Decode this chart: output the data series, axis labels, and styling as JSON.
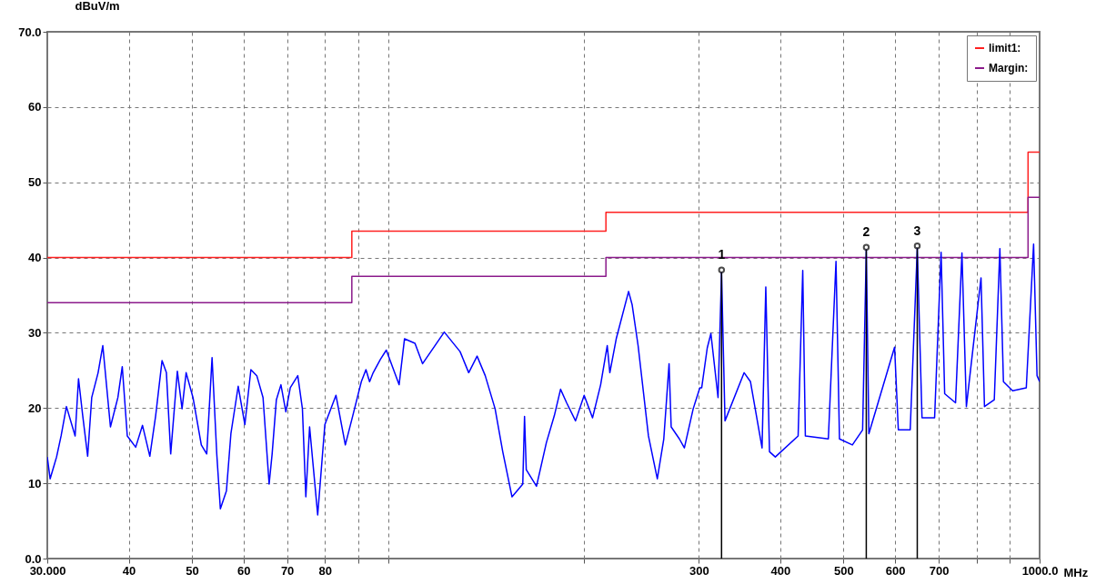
{
  "chart_data": {
    "type": "line",
    "xlabel": "MHz",
    "ylabel": "dBuV/m",
    "log": "x",
    "grid": true,
    "legend": "top right",
    "xlim": [
      30,
      1000
    ],
    "ylim": [
      0,
      70
    ],
    "xticks": [
      {
        "value": 30,
        "label": "30.000"
      },
      40,
      50,
      60,
      70,
      80,
      {
        "value": 90,
        "label": null
      },
      {
        "value": 100,
        "label": null
      },
      {
        "value": 200,
        "label": null
      },
      300,
      400,
      500,
      600,
      700,
      {
        "value": 800,
        "label": null
      },
      {
        "value": 900,
        "label": null
      },
      {
        "value": 1000,
        "label": "1000.0"
      }
    ],
    "yticks": [
      {
        "value": 0,
        "label": "0.0"
      },
      10,
      20,
      30,
      40,
      50,
      60,
      {
        "value": 70,
        "label": "70.0"
      }
    ],
    "series": [
      {
        "name": "limit1:",
        "color": "#ff2020",
        "x": [
          30,
          88,
          88,
          216,
          216,
          960,
          960,
          1000
        ],
        "values": [
          40,
          40,
          43.5,
          43.5,
          46,
          46,
          54,
          54
        ]
      },
      {
        "name": "Margin:",
        "color": "#8b1a8b",
        "x": [
          30,
          88,
          88,
          216,
          216,
          960,
          960,
          1000
        ],
        "values": [
          34,
          34,
          37.5,
          37.5,
          40,
          40,
          48,
          48
        ]
      },
      {
        "color": "#0000ff",
        "x": [
          30,
          30.3,
          31.0,
          31.5,
          32.1,
          33.1,
          33.5,
          34.0,
          34.6,
          35.1,
          35.9,
          36.5,
          37.5,
          38.5,
          39.1,
          39.8,
          41.0,
          42.0,
          43.1,
          44.0,
          45.0,
          45.7,
          46.4,
          47.5,
          48.3,
          49.0,
          50.2,
          51.7,
          52.7,
          53.7,
          54.6,
          55.3,
          56.5,
          57.4,
          58.9,
          60.3,
          61.6,
          62.9,
          64.3,
          65.7,
          66.4,
          67.4,
          68.5,
          69.7,
          70.8,
          72.7,
          73.9,
          74.8,
          75.8,
          78.0,
          80.0,
          83.2,
          86.0,
          88.3,
          91.0,
          92.5,
          93.7,
          94.9,
          97.4,
          99.4,
          104,
          106,
          110,
          113,
          122,
          129,
          133,
          137,
          141,
          146,
          150,
          155,
          161,
          162,
          163,
          169,
          175,
          180,
          184,
          188,
          194,
          200,
          206,
          212,
          217,
          219,
          224,
          234,
          237,
          242,
          251,
          259,
          265,
          270,
          272,
          280,
          285,
          294,
          301,
          303,
          309,
          313,
          321,
          325,
          329,
          352,
          360,
          375,
          380,
          385,
          393,
          426,
          433,
          437,
          474,
          487,
          493,
          516,
          535,
          542,
          547,
          599,
          607,
          633,
          649,
          660,
          690,
          706,
          715,
          743,
          760,
          772,
          813,
          823,
          852,
          869,
          880,
          909,
          954,
          979,
          991,
          1000
        ],
        "values": [
          13.5,
          10.6,
          13.5,
          16.3,
          20.2,
          16.3,
          23.9,
          19,
          13.6,
          21.4,
          24.7,
          28.3,
          17.5,
          21.4,
          25.5,
          16.3,
          14.8,
          17.7,
          13.6,
          19,
          26.3,
          24.7,
          13.9,
          24.9,
          19.9,
          24.7,
          21.4,
          15.1,
          13.9,
          26.7,
          13.9,
          6.6,
          9,
          16.6,
          22.9,
          17.8,
          25.1,
          24.3,
          21.4,
          9.9,
          13.9,
          21.1,
          23.1,
          19.5,
          22.7,
          24.3,
          19.9,
          8.2,
          17.5,
          5.8,
          17.8,
          21.7,
          15.1,
          19,
          23.5,
          25.1,
          23.5,
          24.7,
          26.5,
          27.7,
          23.1,
          29.2,
          28.6,
          25.9,
          30.1,
          27.5,
          24.7,
          26.9,
          24.3,
          19.9,
          14.2,
          8.2,
          9.9,
          18.9,
          11.8,
          9.6,
          15.4,
          19,
          22.5,
          20.7,
          18.3,
          21.7,
          18.7,
          23.1,
          28.3,
          24.7,
          29.2,
          35.5,
          33.7,
          28.3,
          16.3,
          10.6,
          15.9,
          25.9,
          17.5,
          15.9,
          14.7,
          19.9,
          22.7,
          22.7,
          28,
          29.9,
          21.4,
          38,
          18.3,
          24.7,
          23.5,
          14.7,
          36.1,
          14.2,
          13.5,
          16.3,
          38.3,
          16.3,
          15.9,
          39.5,
          15.9,
          15.1,
          17.1,
          41,
          16.6,
          28.1,
          17.1,
          17.1,
          41.2,
          18.7,
          18.7,
          40.7,
          21.9,
          20.7,
          40.6,
          20.2,
          37.3,
          20.2,
          21.1,
          41.2,
          23.5,
          22.3,
          22.7,
          41.8,
          24.3,
          23.5
        ]
      }
    ],
    "annotations": [
      {
        "text": "1",
        "x": 325,
        "y": 38
      },
      {
        "text": "2",
        "x": 542,
        "y": 41
      },
      {
        "text": "3",
        "x": 649,
        "y": 41.2
      }
    ]
  }
}
